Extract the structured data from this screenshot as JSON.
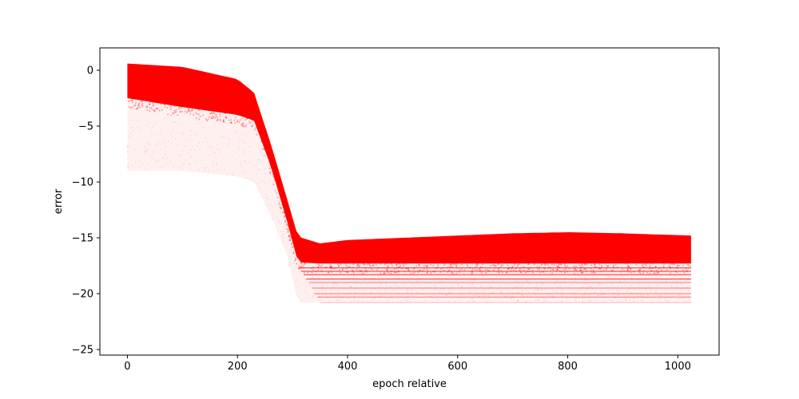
{
  "chart_data": {
    "type": "scatter",
    "title": "",
    "xlabel": "epoch relative",
    "ylabel": "error",
    "xlim": [
      -50,
      1075
    ],
    "ylim": [
      -25.5,
      2
    ],
    "x_ticks": [
      0,
      200,
      400,
      600,
      800,
      1000
    ],
    "y_ticks": [
      0,
      -5,
      -10,
      -15,
      -20,
      -25
    ],
    "x_tick_labels": [
      "0",
      "200",
      "400",
      "600",
      "800",
      "1000"
    ],
    "y_tick_labels": [
      "0",
      "−5",
      "−10",
      "−15",
      "−20",
      "−25"
    ],
    "grid": false,
    "legend": null,
    "series": [
      {
        "color": "#ff0000",
        "x_range": [
          0,
          1024
        ],
        "band": {
          "x": [
            0,
            100,
            200,
            230,
            260,
            290,
            310,
            350,
            400,
            500,
            600,
            700,
            800,
            900,
            1024
          ],
          "upper": [
            0.6,
            0.3,
            -0.8,
            -2.0,
            -6.5,
            -11.5,
            -14.9,
            -15.5,
            -15.2,
            -15.0,
            -14.8,
            -14.6,
            -14.5,
            -14.6,
            -14.8
          ],
          "lower": [
            -2.5,
            -3.3,
            -4.0,
            -4.5,
            -8.5,
            -13.5,
            -17.2,
            -17.3,
            -17.3,
            -17.3,
            -17.3,
            -17.3,
            -17.3,
            -17.3,
            -17.3
          ]
        },
        "faint_floor": {
          "x": [
            0,
            100,
            200,
            230,
            260,
            290,
            310,
            1024
          ],
          "y": [
            -9.0,
            -9.0,
            -9.5,
            -10.0,
            -13.0,
            -16.5,
            -20.8,
            -20.8
          ]
        },
        "horizontal_streaks": [
          -17.7,
          -18.0,
          -18.3,
          -18.7,
          -19.0,
          -19.5,
          -20.0,
          -20.3,
          -20.8
        ]
      }
    ]
  }
}
